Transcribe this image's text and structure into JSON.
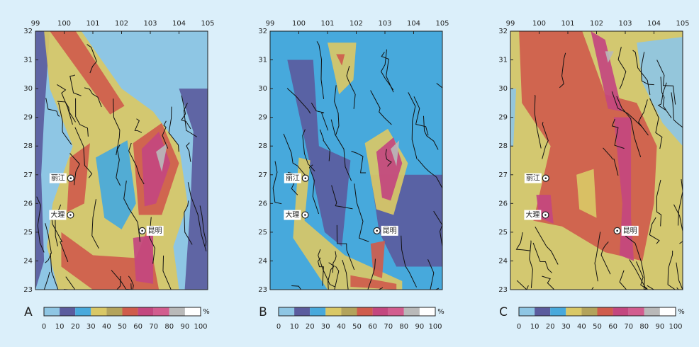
{
  "panels": [
    {
      "label": "A",
      "x_ticks": [
        99,
        100,
        101,
        102,
        103,
        104,
        105
      ],
      "y_ticks": [
        32,
        31,
        30,
        29,
        28,
        27,
        26,
        25,
        24,
        23
      ],
      "cities": [
        "丽江",
        "大理",
        "昆明"
      ],
      "colorbar": {
        "ticks": [
          0,
          10,
          20,
          30,
          40,
          50,
          60,
          70,
          80,
          90,
          100
        ],
        "unit": "%"
      }
    },
    {
      "label": "B",
      "x_ticks": [
        99,
        100,
        101,
        102,
        103,
        104,
        105
      ],
      "y_ticks": [
        32,
        31,
        30,
        29,
        28,
        27,
        26,
        25,
        24,
        23
      ],
      "cities": [
        "丽江",
        "大理",
        "昆明"
      ],
      "colorbar": {
        "ticks": [
          0,
          10,
          20,
          30,
          40,
          50,
          60,
          70,
          80,
          90,
          100
        ],
        "unit": "%"
      }
    },
    {
      "label": "C",
      "x_ticks": [
        99,
        100,
        101,
        102,
        103,
        104,
        105
      ],
      "y_ticks": [
        32,
        31,
        30,
        29,
        28,
        27,
        26,
        25,
        24,
        23
      ],
      "cities": [
        "丽江",
        "大理",
        "昆明"
      ],
      "colorbar": {
        "ticks": [
          0,
          10,
          20,
          30,
          40,
          50,
          60,
          70,
          80,
          90,
          100
        ],
        "unit": "%"
      }
    }
  ],
  "colorbar_colors": [
    "#8ec6e4",
    "#5b5c9e",
    "#47a9dc",
    "#d9c866",
    "#b3a35b",
    "#cf5c4c",
    "#c3477f",
    "#d25d8f",
    "#b9b9b9",
    "#ffffff"
  ]
}
